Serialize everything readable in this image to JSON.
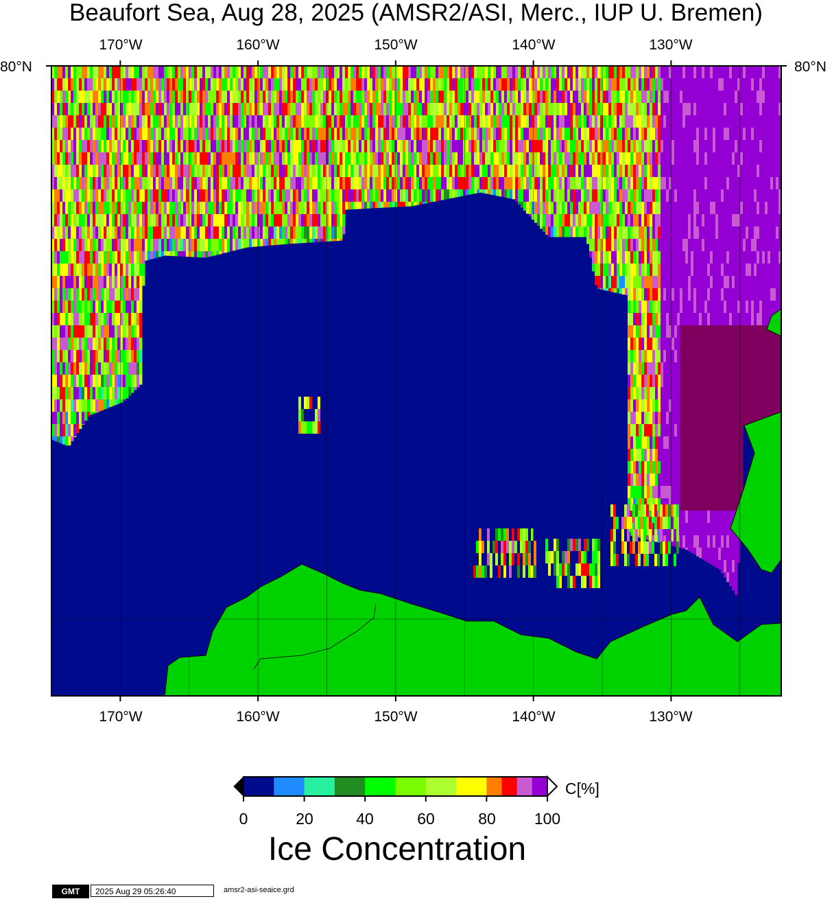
{
  "title": "Beaufort Sea, Aug 28, 2025 (AMSR2/ASI, Merc., IUP U. Bremen)",
  "map": {
    "longitude_labels": [
      "170°W",
      "160°W",
      "150°W",
      "140°W",
      "130°W"
    ],
    "latitude_label": "80°N",
    "longitudes": [
      -170,
      -160,
      -150,
      -140,
      -130
    ],
    "lon_range": [
      -175,
      -122
    ],
    "projection": "Mercator",
    "colors": {
      "open_water": "#000a8c",
      "land": "#00d200",
      "coastline": "#000000",
      "grid": "#000000"
    }
  },
  "colorbar": {
    "unit": "C[%]",
    "title": "Ice Concentration",
    "tick_labels": [
      "0",
      "20",
      "40",
      "60",
      "80",
      "100"
    ],
    "bins": [
      {
        "from": 0,
        "to": 10,
        "color": "#000a8c"
      },
      {
        "from": 10,
        "to": 20,
        "color": "#1e8cff"
      },
      {
        "from": 20,
        "to": 30,
        "color": "#28f0a0"
      },
      {
        "from": 30,
        "to": 40,
        "color": "#228b22"
      },
      {
        "from": 40,
        "to": 50,
        "color": "#00ff00"
      },
      {
        "from": 50,
        "to": 60,
        "color": "#7cfc00"
      },
      {
        "from": 60,
        "to": 70,
        "color": "#adff2f"
      },
      {
        "from": 70,
        "to": 80,
        "color": "#ffff00"
      },
      {
        "from": 80,
        "to": 85,
        "color": "#ff7f00"
      },
      {
        "from": 85,
        "to": 90,
        "color": "#ff0000"
      },
      {
        "from": 90,
        "to": 95,
        "color": "#c85ad2"
      },
      {
        "from": 95,
        "to": 100,
        "color": "#9400d3"
      }
    ],
    "below_color": "#000000",
    "above_color": "#ffffff"
  },
  "footer": {
    "logo": "GMT",
    "timestamp": "2025 Aug 29 05:26:40",
    "file": "amsr2-asi-seaice.grd"
  }
}
